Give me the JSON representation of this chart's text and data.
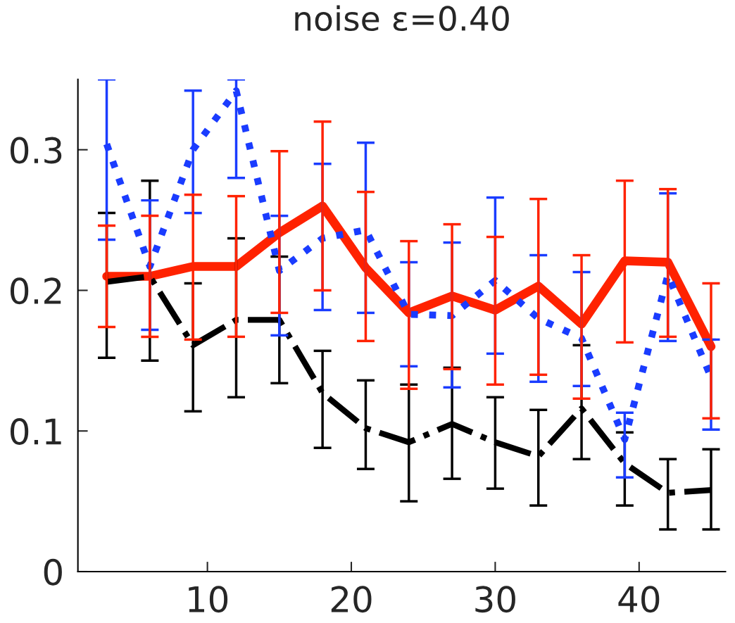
{
  "chart_data": {
    "type": "line",
    "title": "noise ε=0.40",
    "x": [
      3,
      6,
      9,
      12,
      15,
      18,
      21,
      24,
      27,
      30,
      33,
      36,
      39,
      42,
      45
    ],
    "xlim": [
      1,
      46
    ],
    "xticks": [
      10,
      20,
      30,
      40
    ],
    "ylim": [
      0,
      0.35
    ],
    "yticks": [
      0,
      0.1,
      0.2,
      0.3
    ],
    "grid": false,
    "legend": false,
    "series": [
      {
        "color": "#ff2200",
        "line_style": "solid",
        "values": [
          0.21,
          0.21,
          0.217,
          0.217,
          0.241,
          0.26,
          0.216,
          0.184,
          0.196,
          0.186,
          0.203,
          0.176,
          0.221,
          0.22,
          0.16
        ],
        "errors": [
          [
            0.174,
            0.246
          ],
          [
            0.167,
            0.253
          ],
          [
            0.165,
            0.268
          ],
          [
            0.167,
            0.267
          ],
          [
            0.184,
            0.299
          ],
          [
            0.2,
            0.32
          ],
          [
            0.164,
            0.27
          ],
          [
            0.13,
            0.235
          ],
          [
            0.144,
            0.247
          ],
          [
            0.133,
            0.238
          ],
          [
            0.14,
            0.265
          ],
          [
            0.123,
            0.225
          ],
          [
            0.163,
            0.278
          ],
          [
            0.167,
            0.272
          ],
          [
            0.109,
            0.205
          ]
        ]
      },
      {
        "color": "#1a3cff",
        "line_style": "dotted",
        "values": [
          0.304,
          0.217,
          0.3,
          0.342,
          0.214,
          0.237,
          0.243,
          0.183,
          0.182,
          0.207,
          0.18,
          0.166,
          0.094,
          0.211,
          0.138
        ],
        "errors": [
          [
            0.236,
            0.35
          ],
          [
            0.172,
            0.264
          ],
          [
            0.255,
            0.342
          ],
          [
            0.28,
            0.35
          ],
          [
            0.168,
            0.253
          ],
          [
            0.186,
            0.29
          ],
          [
            0.184,
            0.305
          ],
          [
            0.146,
            0.22
          ],
          [
            0.131,
            0.234
          ],
          [
            0.155,
            0.266
          ],
          [
            0.135,
            0.225
          ],
          [
            0.132,
            0.213
          ],
          [
            0.067,
            0.113
          ],
          [
            0.164,
            0.269
          ],
          [
            0.101,
            0.165
          ]
        ]
      },
      {
        "color": "#000000",
        "line_style": "dashdot",
        "values": [
          0.206,
          0.21,
          0.161,
          0.179,
          0.179,
          0.127,
          0.102,
          0.092,
          0.105,
          0.092,
          0.082,
          0.116,
          0.077,
          0.056,
          0.058
        ],
        "errors": [
          [
            0.152,
            0.255
          ],
          [
            0.15,
            0.278
          ],
          [
            0.114,
            0.205
          ],
          [
            0.124,
            0.237
          ],
          [
            0.134,
            0.224
          ],
          [
            0.088,
            0.157
          ],
          [
            0.073,
            0.136
          ],
          [
            0.05,
            0.133
          ],
          [
            0.066,
            0.145
          ],
          [
            0.059,
            0.124
          ],
          [
            0.047,
            0.115
          ],
          [
            0.08,
            0.161
          ],
          [
            0.047,
            0.099
          ],
          [
            0.03,
            0.08
          ],
          [
            0.03,
            0.087
          ]
        ]
      }
    ]
  }
}
